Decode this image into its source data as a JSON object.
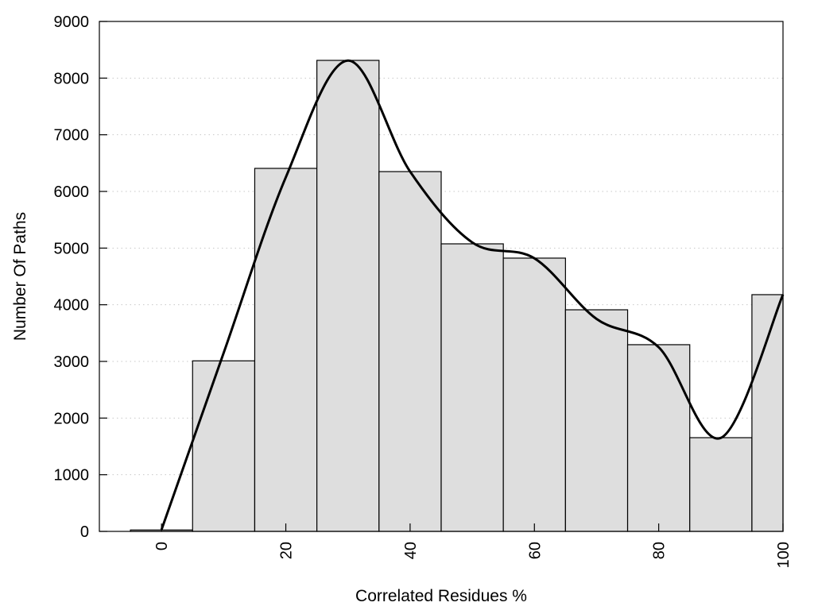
{
  "chart_data": {
    "type": "bar",
    "title": "",
    "xlabel": "Correlated Residues %",
    "ylabel": "Number Of Paths",
    "xlim": [
      -10,
      100
    ],
    "ylim": [
      0,
      9000
    ],
    "grid": "horizontal dotted",
    "bar_width": 10,
    "x": [
      0,
      10,
      20,
      30,
      40,
      50,
      60,
      70,
      80,
      90,
      100
    ],
    "values": [
      25,
      3010,
      6407,
      8313,
      6350,
      5075,
      4823,
      3911,
      3295,
      1654,
      4178
    ],
    "curve": {
      "x": [
        0,
        10,
        20,
        30,
        40,
        50,
        60,
        70,
        80,
        90,
        100
      ],
      "y": [
        30,
        3150,
        6250,
        8310,
        6350,
        5100,
        4820,
        3750,
        3250,
        1650,
        4180
      ]
    },
    "xticks": [
      "0",
      "20",
      "40",
      "60",
      "80",
      "100"
    ],
    "yticks": [
      "0",
      "1000",
      "2000",
      "3000",
      "4000",
      "5000",
      "6000",
      "7000",
      "8000",
      "9000"
    ],
    "colors": {
      "bar_fill": "#dedede",
      "bar_edge": "#000000",
      "curve": "#000000",
      "grid": "#c8c8c8"
    }
  }
}
